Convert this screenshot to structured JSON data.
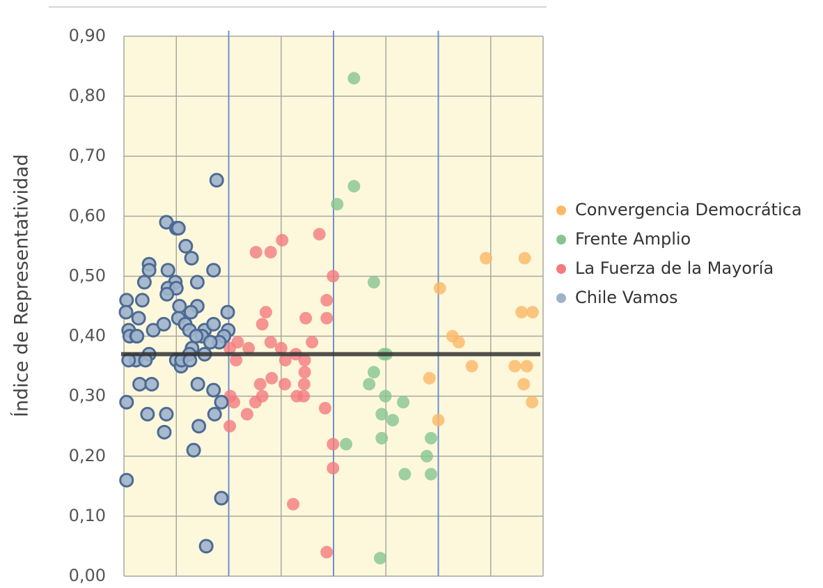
{
  "chart_data": {
    "type": "scatter",
    "y_label": "Índice de Representatividad",
    "xlim": [
      0,
      8
    ],
    "xticks": [
      0,
      1,
      2,
      3,
      4,
      5,
      6,
      7,
      8
    ],
    "x_dividers": [
      2,
      4,
      6
    ],
    "ylim": [
      0,
      0.9
    ],
    "yticks": [
      {
        "value": 0,
        "label": "0,00"
      },
      {
        "value": 0.1,
        "label": "0,10"
      },
      {
        "value": 0.2,
        "label": "0,20"
      },
      {
        "value": 0.3,
        "label": "0,30"
      },
      {
        "value": 0.4,
        "label": "0,40"
      },
      {
        "value": 0.5,
        "label": "0,50"
      },
      {
        "value": 0.6,
        "label": "0,60"
      },
      {
        "value": 0.7,
        "label": "0,70"
      },
      {
        "value": 0.8,
        "label": "0,80"
      },
      {
        "value": 0.9,
        "label": "0,90"
      }
    ],
    "grid": true,
    "hline": 0.37,
    "legend": "right",
    "series": [
      {
        "name": "Convergencia Democrática",
        "color": "#fbb866",
        "x": [
          6.91,
          7.65,
          6.03,
          7.59,
          7.8,
          6.27,
          6.39,
          6.64,
          7.46,
          7.69,
          5.83,
          7.63,
          7.79,
          6.0
        ],
        "values": [
          0.53,
          0.53,
          0.48,
          0.44,
          0.44,
          0.4,
          0.39,
          0.35,
          0.35,
          0.35,
          0.33,
          0.32,
          0.29,
          0.26
        ]
      },
      {
        "name": "Frente Amplio",
        "color": "#86c491",
        "x": [
          4.39,
          4.39,
          4.07,
          4.77,
          5.01,
          4.96,
          4.77,
          4.68,
          4.99,
          5.33,
          4.92,
          5.13,
          4.92,
          5.86,
          4.24,
          5.78,
          5.36,
          5.86,
          4.89
        ],
        "values": [
          0.83,
          0.65,
          0.62,
          0.49,
          0.37,
          0.37,
          0.34,
          0.32,
          0.3,
          0.29,
          0.27,
          0.26,
          0.23,
          0.23,
          0.22,
          0.2,
          0.17,
          0.17,
          0.03
        ]
      },
      {
        "name": "La Fuerza de la Mayoría",
        "color": "#f47a7e",
        "x": [
          3.73,
          3.02,
          2.52,
          2.8,
          3.99,
          3.87,
          2.71,
          3.47,
          3.87,
          2.64,
          3.59,
          2.8,
          2.17,
          2.38,
          2.02,
          3.0,
          3.28,
          3.08,
          2.14,
          3.45,
          3.45,
          2.82,
          3.44,
          3.07,
          2.6,
          2.03,
          2.64,
          3.43,
          3.3,
          2.1,
          2.51,
          2.35,
          3.84,
          2.02,
          3.99,
          3.99,
          3.23,
          3.87
        ],
        "values": [
          0.57,
          0.56,
          0.54,
          0.54,
          0.5,
          0.46,
          0.44,
          0.43,
          0.43,
          0.42,
          0.39,
          0.39,
          0.39,
          0.38,
          0.38,
          0.38,
          0.37,
          0.36,
          0.36,
          0.36,
          0.34,
          0.33,
          0.32,
          0.32,
          0.32,
          0.3,
          0.3,
          0.3,
          0.3,
          0.29,
          0.29,
          0.27,
          0.28,
          0.25,
          0.22,
          0.18,
          0.12,
          0.04
        ]
      },
      {
        "name": "Chile Vamos",
        "color": "#9fb2cc",
        "x": [
          1.77,
          0.81,
          1.0,
          1.04,
          1.18,
          1.29,
          0.48,
          0.48,
          0.84,
          1.71,
          0.39,
          0.98,
          1.4,
          0.84,
          1.0,
          0.82,
          0.05,
          0.35,
          0.04,
          0.28,
          1.06,
          1.4,
          1.28,
          1.98,
          1.04,
          1.17,
          1.25,
          0.09,
          0.56,
          0.76,
          1.54,
          1.71,
          1.99,
          0.11,
          0.24,
          0.25,
          1.49,
          1.38,
          1.91,
          1.82,
          1.65,
          1.3,
          1.25,
          0.48,
          0.23,
          0.09,
          0.41,
          1.0,
          1.09,
          1.1,
          1.26,
          1.54,
          0.3,
          0.53,
          1.41,
          1.71,
          0.05,
          1.86,
          0.45,
          0.81,
          1.73,
          1.43,
          0.77,
          1.33,
          0.05,
          1.86,
          1.57
        ],
        "values": [
          0.66,
          0.59,
          0.58,
          0.58,
          0.55,
          0.53,
          0.52,
          0.51,
          0.51,
          0.51,
          0.49,
          0.49,
          0.49,
          0.48,
          0.48,
          0.47,
          0.46,
          0.46,
          0.44,
          0.43,
          0.45,
          0.45,
          0.44,
          0.44,
          0.43,
          0.42,
          0.41,
          0.41,
          0.41,
          0.42,
          0.41,
          0.42,
          0.41,
          0.4,
          0.4,
          0.4,
          0.4,
          0.4,
          0.4,
          0.39,
          0.39,
          0.38,
          0.37,
          0.37,
          0.36,
          0.36,
          0.36,
          0.36,
          0.35,
          0.36,
          0.36,
          0.37,
          0.32,
          0.32,
          0.32,
          0.31,
          0.29,
          0.29,
          0.27,
          0.27,
          0.27,
          0.25,
          0.24,
          0.21,
          0.16,
          0.13,
          0.05
        ]
      }
    ]
  }
}
